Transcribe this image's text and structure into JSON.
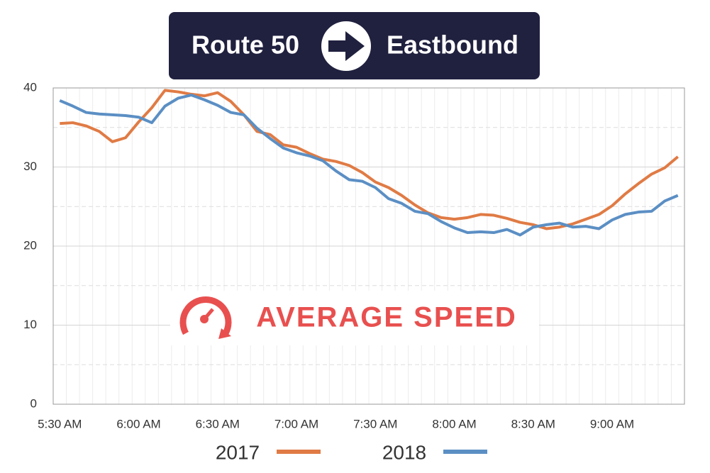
{
  "chart_data": {
    "type": "line",
    "title": "Route 50",
    "subtitle": "Eastbound",
    "annotation": "AVERAGE SPEED",
    "categories": [
      "5:30 AM",
      null,
      null,
      null,
      null,
      null,
      "6:00 AM",
      null,
      null,
      null,
      null,
      null,
      "6:30 AM",
      null,
      null,
      null,
      null,
      null,
      "7:00 AM",
      null,
      null,
      null,
      null,
      null,
      "7:30 AM",
      null,
      null,
      null,
      null,
      null,
      "8:00 AM",
      null,
      null,
      null,
      null,
      null,
      "8:30 AM",
      null,
      null,
      null,
      null,
      null,
      "9:00 AM",
      null,
      null,
      null,
      null,
      null
    ],
    "series": [
      {
        "name": "2017",
        "color": "#e07b45",
        "values": [
          35.5,
          35.6,
          35.2,
          34.5,
          33.2,
          33.7,
          35.7,
          37.5,
          39.7,
          39.5,
          39.2,
          39.0,
          39.4,
          38.3,
          36.6,
          34.5,
          34.1,
          32.8,
          32.5,
          31.7,
          31.0,
          30.7,
          30.2,
          29.3,
          28.1,
          27.4,
          26.4,
          25.2,
          24.2,
          23.6,
          23.4,
          23.6,
          24.0,
          23.9,
          23.5,
          23.0,
          22.7,
          22.2,
          22.4,
          22.8,
          23.4,
          24.0,
          25.1,
          26.6,
          27.9,
          29.1,
          29.9,
          31.3
        ]
      },
      {
        "name": "2018",
        "color": "#5b8fc4",
        "values": [
          38.4,
          37.7,
          36.9,
          36.7,
          36.6,
          36.5,
          36.3,
          35.6,
          37.7,
          38.7,
          39.1,
          38.5,
          37.8,
          36.9,
          36.6,
          34.9,
          33.6,
          32.4,
          31.8,
          31.4,
          30.8,
          29.5,
          28.4,
          28.2,
          27.4,
          26.0,
          25.4,
          24.4,
          24.1,
          23.1,
          22.3,
          21.7,
          21.8,
          21.7,
          22.1,
          21.4,
          22.4,
          22.7,
          22.9,
          22.4,
          22.5,
          22.2,
          23.3,
          24.0,
          24.3,
          24.4,
          25.7,
          26.4
        ]
      }
    ],
    "ylim": [
      0,
      40
    ],
    "yticks": [
      0,
      10,
      20,
      30,
      40
    ],
    "grid": true
  }
}
